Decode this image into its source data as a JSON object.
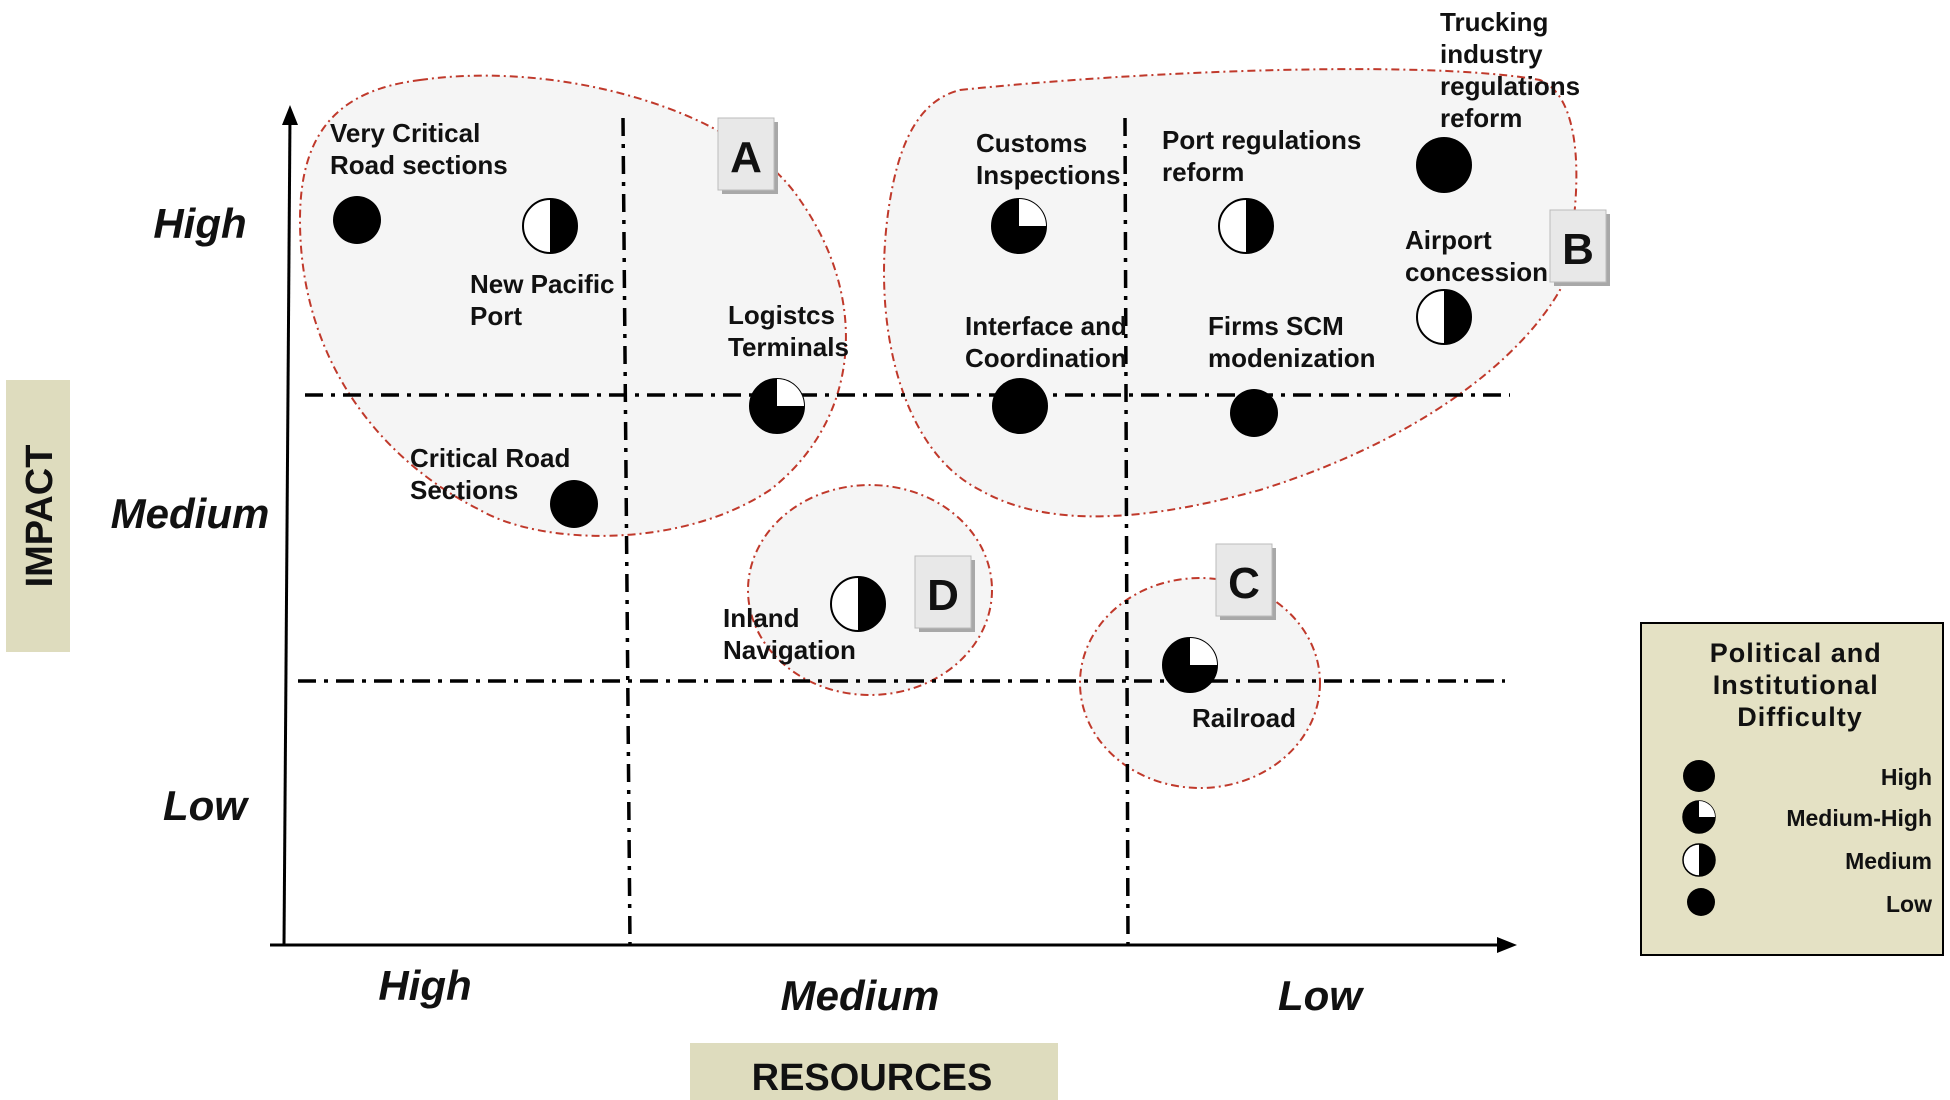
{
  "y_axis": {
    "title": "IMPACT",
    "ticks": [
      "High",
      "Medium",
      "Low"
    ]
  },
  "x_axis": {
    "title": "RESOURCES",
    "ticks": [
      "High",
      "Medium",
      "Low"
    ]
  },
  "groups": [
    {
      "letter": "A"
    },
    {
      "letter": "B"
    },
    {
      "letter": "C"
    },
    {
      "letter": "D"
    }
  ],
  "items": [
    {
      "label": [
        "Very Critical",
        "Road sections"
      ],
      "difficulty": "High"
    },
    {
      "label": [
        "New Pacific",
        "Port"
      ],
      "difficulty": "Medium"
    },
    {
      "label": [
        "Logistcs",
        "Terminals"
      ],
      "difficulty": "Medium-High"
    },
    {
      "label": [
        "Critical Road",
        "Sections"
      ],
      "difficulty": "Low"
    },
    {
      "label": [
        "Customs",
        "Inspections"
      ],
      "difficulty": "Medium-High"
    },
    {
      "label": [
        "Port regulations",
        "reform"
      ],
      "difficulty": "Medium"
    },
    {
      "label": [
        "Trucking",
        "industry",
        "regulations",
        "reform"
      ],
      "difficulty": "High"
    },
    {
      "label": [
        "Airport",
        "concession"
      ],
      "difficulty": "Medium"
    },
    {
      "label": [
        "Interface and",
        "Coordination"
      ],
      "difficulty": "High"
    },
    {
      "label": [
        "Firms SCM",
        "modenization"
      ],
      "difficulty": "Low"
    },
    {
      "label": [
        "Inland",
        "Navigation"
      ],
      "difficulty": "Medium"
    },
    {
      "label": [
        "Railroad"
      ],
      "difficulty": "Medium-High"
    }
  ],
  "legend": {
    "title": [
      "Political and",
      "Institutional",
      "Difficulty"
    ],
    "items": [
      "High",
      "Medium-High",
      "Medium",
      "Low"
    ]
  },
  "colors": {
    "blob_fill": "#f5f5f5",
    "blob_outline": "#c0392b",
    "axis_title_bg": "#dedcbe",
    "legend_bg": "#e4e1c4"
  }
}
